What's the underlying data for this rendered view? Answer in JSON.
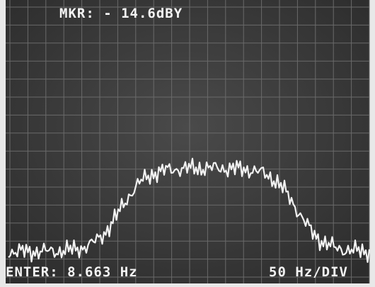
{
  "header": {
    "marker": "MKR: - 14.6dBY"
  },
  "footer": {
    "center": "ENTER: 8.663 Hz",
    "scale": "50 Hz/DIV"
  }
}
